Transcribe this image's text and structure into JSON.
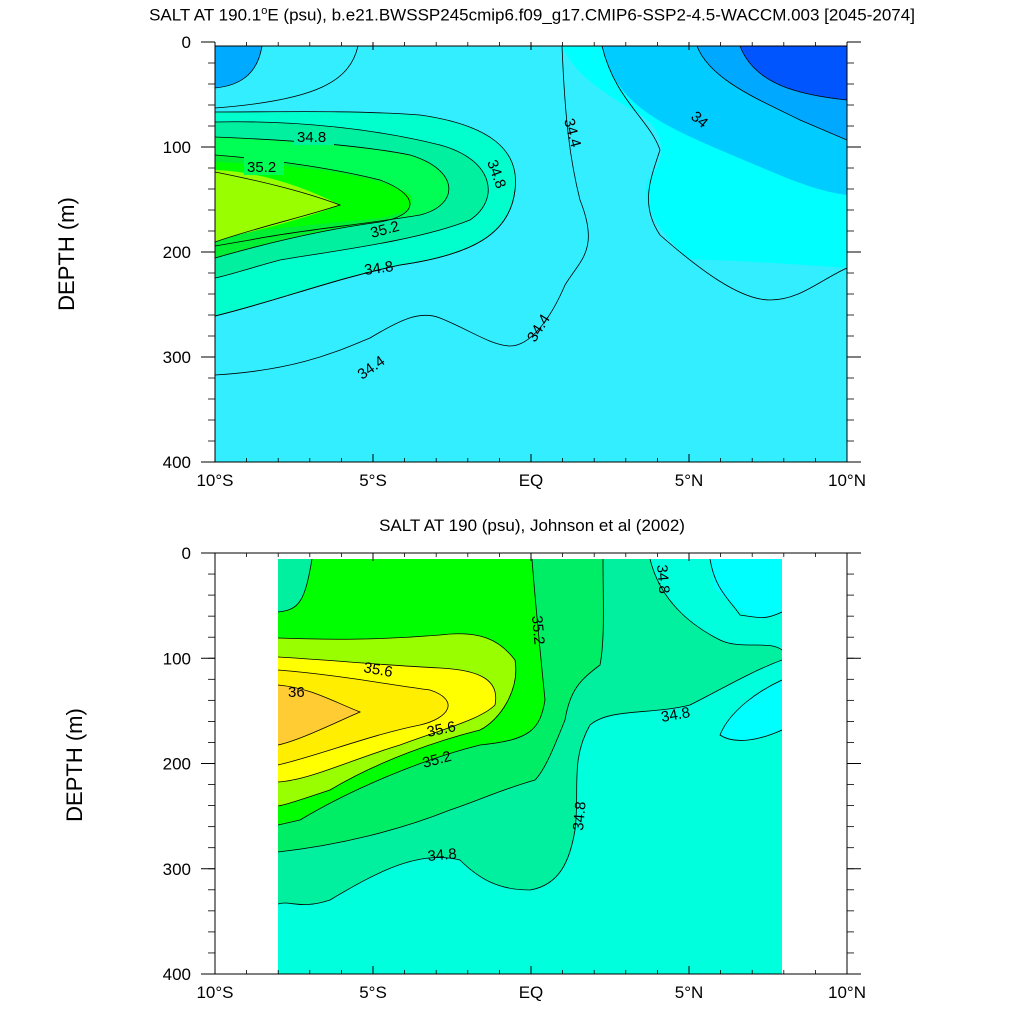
{
  "chart_data": [
    {
      "type": "contour",
      "title_prefix": "SALT AT 190.1",
      "title_suffix": "E (psu), b.e21.BWSSP245cmip6.f09_g17.CMIP6-SSP2-4.5-WACCM.003 [2045-2074]",
      "ylabel": "DEPTH (m)",
      "x_ticks": [
        "10°S",
        "5°S",
        "EQ",
        "5°N",
        "10°N"
      ],
      "x_range": [
        -10,
        10
      ],
      "y_ticks": [
        "0",
        "100",
        "200",
        "300",
        "400"
      ],
      "y_range": [
        0,
        400
      ],
      "y_reversed": true,
      "contour_labels": [
        "34.8",
        "35.2",
        "34.8",
        "35.2",
        "34.8",
        "34.4",
        "34.4",
        "34.4",
        "34"
      ]
    },
    {
      "type": "contour",
      "title": "SALT AT 190 (psu), Johnson et al (2002)",
      "ylabel": "DEPTH (m)",
      "x_ticks": [
        "10°S",
        "5°S",
        "EQ",
        "5°N",
        "10°N"
      ],
      "x_range": [
        -10,
        10
      ],
      "y_ticks": [
        "0",
        "100",
        "200",
        "300",
        "400"
      ],
      "y_range": [
        0,
        400
      ],
      "y_reversed": true,
      "data_x_range": [
        -8,
        8
      ],
      "contour_labels": [
        "35.6",
        "36",
        "35.6",
        "35.2",
        "35.2",
        "34.8",
        "34.8",
        "34.8",
        "34.8"
      ]
    }
  ]
}
